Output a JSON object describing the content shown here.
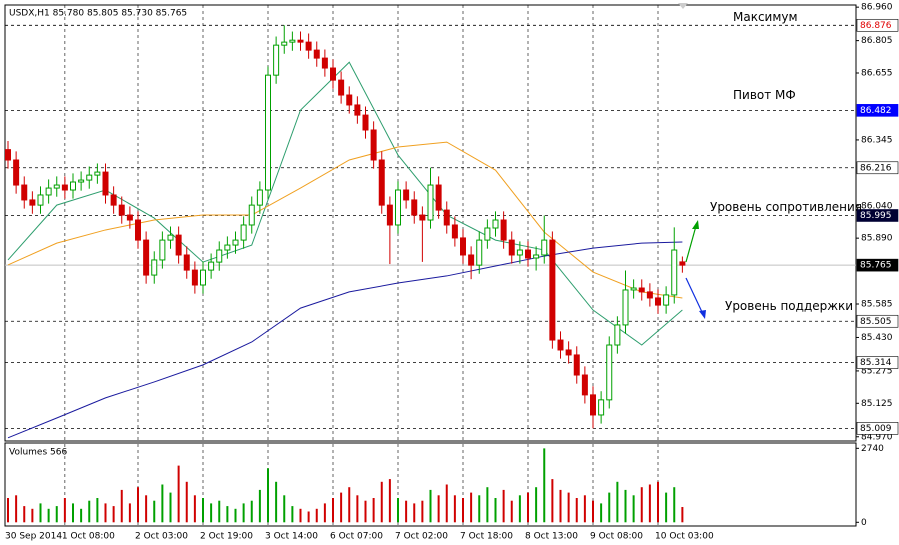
{
  "chart_data": {
    "type": "candlestick",
    "title": "USDX,H1 85.780 85.805 85.730 85.765",
    "categories": [
      "30 Sep 2014",
      null,
      null,
      null,
      null,
      null,
      null,
      "1 Oct 08:00",
      null,
      null,
      null,
      null,
      null,
      null,
      null,
      null,
      "2 Oct 03:00",
      null,
      null,
      null,
      null,
      null,
      null,
      null,
      "2 Oct 19:00",
      null,
      null,
      null,
      null,
      null,
      null,
      null,
      "3 Oct 14:00",
      null,
      null,
      null,
      null,
      null,
      null,
      null,
      "6 Oct 07:00",
      null,
      null,
      null,
      null,
      null,
      null,
      null,
      "7 Oct 02:00",
      null,
      null,
      null,
      null,
      null,
      null,
      null,
      "7 Oct 18:00",
      null,
      null,
      null,
      null,
      null,
      null,
      null,
      "8 Oct 13:00",
      null,
      null,
      null,
      null,
      null,
      null,
      null,
      "9 Oct 08:00",
      null,
      null,
      null,
      null,
      null,
      null,
      null,
      "10 Oct 03:00",
      null,
      null,
      null
    ],
    "candles": [
      [
        86.3,
        86.34,
        86.212,
        86.252
      ],
      [
        86.252,
        86.292,
        86.096,
        86.136
      ],
      [
        86.136,
        86.176,
        86.027,
        86.067
      ],
      [
        86.067,
        86.107,
        86.003,
        86.043
      ],
      [
        86.043,
        86.13,
        86.003,
        86.09
      ],
      [
        86.09,
        86.162,
        86.05,
        86.122
      ],
      [
        86.122,
        86.176,
        86.082,
        86.136
      ],
      [
        86.136,
        86.176,
        86.073,
        86.113
      ],
      [
        86.113,
        86.19,
        86.073,
        86.15
      ],
      [
        86.15,
        86.199,
        86.11,
        86.159
      ],
      [
        86.159,
        86.222,
        86.119,
        86.182
      ],
      [
        86.182,
        86.236,
        86.142,
        86.196
      ],
      [
        86.196,
        86.236,
        86.05,
        86.09
      ],
      [
        86.09,
        86.13,
        86.003,
        86.043
      ],
      [
        86.043,
        86.083,
        85.957,
        85.997
      ],
      [
        85.997,
        86.037,
        85.934,
        85.974
      ],
      [
        85.974,
        86.014,
        85.841,
        85.881
      ],
      [
        85.881,
        85.921,
        85.679,
        85.719
      ],
      [
        85.719,
        85.829,
        85.679,
        85.789
      ],
      [
        85.789,
        85.921,
        85.749,
        85.881
      ],
      [
        85.881,
        85.944,
        85.841,
        85.904
      ],
      [
        85.904,
        85.944,
        85.772,
        85.812
      ],
      [
        85.812,
        85.852,
        85.702,
        85.742
      ],
      [
        85.742,
        85.782,
        85.633,
        85.673
      ],
      [
        85.673,
        85.782,
        85.633,
        85.742
      ],
      [
        85.742,
        85.819,
        85.702,
        85.779
      ],
      [
        85.779,
        85.875,
        85.739,
        85.835
      ],
      [
        85.835,
        85.898,
        85.795,
        85.858
      ],
      [
        85.858,
        85.921,
        85.818,
        85.881
      ],
      [
        85.881,
        85.991,
        85.841,
        85.951
      ],
      [
        85.951,
        86.083,
        85.911,
        86.043
      ],
      [
        86.043,
        86.153,
        86.003,
        86.113
      ],
      [
        86.113,
        86.685,
        86.073,
        86.645
      ],
      [
        86.645,
        86.824,
        86.605,
        86.784
      ],
      [
        86.784,
        86.876,
        86.744,
        86.798
      ],
      [
        86.798,
        86.847,
        86.758,
        86.807
      ],
      [
        86.807,
        86.847,
        86.758,
        86.798
      ],
      [
        86.798,
        86.838,
        86.721,
        86.761
      ],
      [
        86.761,
        86.801,
        86.684,
        86.724
      ],
      [
        86.724,
        86.764,
        86.638,
        86.678
      ],
      [
        86.678,
        86.718,
        86.582,
        86.622
      ],
      [
        86.622,
        86.662,
        86.513,
        86.553
      ],
      [
        86.553,
        86.593,
        86.467,
        86.507
      ],
      [
        86.507,
        86.547,
        86.42,
        86.46
      ],
      [
        86.46,
        86.5,
        86.351,
        86.391
      ],
      [
        86.391,
        86.431,
        86.212,
        86.252
      ],
      [
        86.252,
        86.292,
        86.003,
        86.043
      ],
      [
        86.043,
        86.083,
        85.77,
        85.951
      ],
      [
        85.951,
        86.153,
        85.911,
        86.113
      ],
      [
        86.113,
        86.153,
        86.027,
        86.067
      ],
      [
        86.067,
        86.107,
        85.957,
        85.997
      ],
      [
        85.997,
        86.037,
        85.78,
        85.974
      ],
      [
        85.974,
        86.216,
        85.934,
        86.136
      ],
      [
        86.136,
        86.176,
        85.98,
        86.02
      ],
      [
        86.02,
        86.06,
        85.911,
        85.951
      ],
      [
        85.951,
        85.991,
        85.851,
        85.891
      ],
      [
        85.891,
        85.931,
        85.772,
        85.812
      ],
      [
        85.812,
        85.852,
        85.7,
        85.765
      ],
      [
        85.765,
        85.921,
        85.725,
        85.881
      ],
      [
        85.881,
        85.977,
        85.841,
        85.937
      ],
      [
        85.937,
        86.014,
        85.897,
        85.974
      ],
      [
        85.974,
        86.014,
        85.841,
        85.881
      ],
      [
        85.881,
        85.921,
        85.772,
        85.812
      ],
      [
        85.812,
        85.875,
        85.772,
        85.835
      ],
      [
        85.835,
        85.875,
        85.758,
        85.798
      ],
      [
        85.798,
        85.852,
        85.74,
        85.812
      ],
      [
        85.812,
        85.995,
        85.772,
        85.881
      ],
      [
        85.881,
        85.921,
        85.378,
        85.418
      ],
      [
        85.418,
        85.458,
        85.332,
        85.372
      ],
      [
        85.372,
        85.412,
        85.309,
        85.349
      ],
      [
        85.349,
        85.389,
        85.216,
        85.256
      ],
      [
        85.256,
        85.296,
        85.124,
        85.164
      ],
      [
        85.164,
        85.204,
        85.009,
        85.071
      ],
      [
        85.071,
        85.181,
        85.031,
        85.141
      ],
      [
        85.141,
        85.435,
        85.101,
        85.395
      ],
      [
        85.395,
        85.528,
        85.355,
        85.488
      ],
      [
        85.488,
        85.74,
        85.448,
        85.65
      ],
      [
        85.65,
        85.699,
        85.61,
        85.659
      ],
      [
        85.659,
        85.699,
        85.601,
        85.641
      ],
      [
        85.641,
        85.681,
        85.573,
        85.613
      ],
      [
        85.613,
        85.653,
        85.54,
        85.58
      ],
      [
        85.58,
        85.667,
        85.54,
        85.627
      ],
      [
        85.627,
        85.94,
        85.587,
        85.835
      ],
      [
        85.78,
        85.805,
        85.73,
        85.765
      ]
    ],
    "up_color": "#00a000",
    "down_color": "#d00000",
    "ylim": [
      84.955,
      86.97
    ],
    "yticks": [
      {
        "value": 86.96,
        "label": "86.960"
      },
      86.805,
      86.655,
      86.345,
      {
        "value": 86.04,
        "label": "86.040"
      },
      {
        "value": 85.89,
        "label": "85.890"
      },
      85.585,
      {
        "value": 85.43,
        "label": "85.430"
      },
      85.275,
      85.125,
      {
        "value": 84.97,
        "label": "84.970"
      }
    ],
    "grid": true,
    "moving_averages": [
      {
        "color": "#2e9e6e",
        "x": [
          0,
          6,
          12,
          18,
          24,
          30,
          36,
          42,
          48,
          54,
          60,
          66,
          72,
          78,
          83
        ],
        "values": [
          85.789,
          86.043,
          86.113,
          85.983,
          85.779,
          85.858,
          86.483,
          86.705,
          86.275,
          85.997,
          85.881,
          85.835,
          85.557,
          85.395,
          85.557
        ]
      },
      {
        "color": "#f0a020",
        "x": [
          0,
          6,
          12,
          18,
          24,
          30,
          36,
          42,
          48,
          54,
          60,
          66,
          72,
          78,
          83
        ],
        "values": [
          85.766,
          85.867,
          85.928,
          85.974,
          85.997,
          85.997,
          86.122,
          86.252,
          86.312,
          86.335,
          86.205,
          85.918,
          85.733,
          85.641,
          85.613
        ]
      },
      {
        "color": "#1a1a9e",
        "x": [
          0,
          6,
          12,
          18,
          24,
          30,
          36,
          42,
          48,
          54,
          60,
          66,
          72,
          78,
          83
        ],
        "values": [
          84.965,
          85.057,
          85.15,
          85.224,
          85.303,
          85.409,
          85.566,
          85.641,
          85.682,
          85.715,
          85.761,
          85.807,
          85.844,
          85.867,
          85.872
        ]
      }
    ],
    "levels": [
      {
        "value": 86.876,
        "line": "dashed",
        "label_color": "#e00000",
        "label_background": "#ffffff",
        "annotation": "Максимум"
      },
      {
        "value": 86.482,
        "line": "dashed",
        "label_color": "#ffffff",
        "label_background": "#0000ff",
        "annotation": "Пивот МФ"
      },
      {
        "value": 86.216,
        "line": "dashed",
        "label_color": "#000000",
        "label_background": "#ffffff"
      },
      {
        "value": 85.995,
        "line": "dashed",
        "label_color": "#ffffff",
        "label_background": "#000033",
        "annotation": "Уровень сопротивления"
      },
      {
        "value": 85.765,
        "line": "solid",
        "label_color": "#ffffff",
        "label_background": "#000000"
      },
      {
        "value": 85.505,
        "line": "dashed",
        "label_color": "#000000",
        "label_background": "#ffffff",
        "annotation": "Уровень поддержки"
      },
      {
        "value": 85.314,
        "line": "dashed",
        "label_color": "#000000",
        "label_background": "#ffffff"
      },
      {
        "value": 85.009,
        "line": "dashed",
        "label_color": "#000000",
        "label_background": "#ffffff"
      }
    ],
    "volumes": {
      "title": "Volumes 566",
      "ylim": [
        -100,
        2900
      ],
      "yticks": [
        2740,
        0
      ],
      "values": [
        900,
        1000,
        600,
        500,
        700,
        500,
        600,
        900,
        700,
        500,
        800,
        900,
        700,
        600,
        1200,
        700,
        1300,
        1000,
        800,
        1400,
        1100,
        2100,
        1500,
        1000,
        900,
        700,
        800,
        600,
        500,
        700,
        800,
        1200,
        2000,
        1500,
        1000,
        600,
        500,
        400,
        500,
        700,
        900,
        1100,
        1300,
        1000,
        800,
        900,
        1500,
        1600,
        900,
        800,
        700,
        800,
        1200,
        1000,
        1400,
        1000,
        900,
        1100,
        1000,
        1300,
        900,
        1200,
        800,
        1000,
        1100,
        1300,
        2740,
        1600,
        1200,
        1100,
        900,
        1000,
        800,
        700,
        1100,
        1500,
        1200,
        1000,
        1300,
        1400,
        1500,
        1100,
        1300,
        566
      ]
    }
  }
}
